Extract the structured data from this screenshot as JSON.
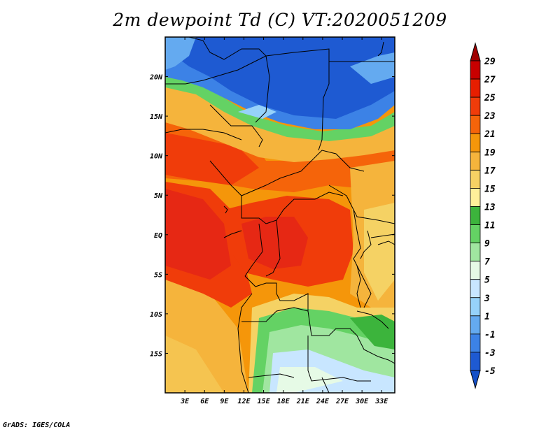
{
  "title": "2m dewpoint Td (C) VT:2020051209",
  "credit": "GrADS: IGES/COLA",
  "map": {
    "lat_range": [
      -20,
      25
    ],
    "lon_range": [
      0,
      35
    ],
    "lat_ticks": [
      {
        "value": 20,
        "label": "20N"
      },
      {
        "value": 15,
        "label": "15N"
      },
      {
        "value": 10,
        "label": "10N"
      },
      {
        "value": 5,
        "label": "5N"
      },
      {
        "value": 0,
        "label": "EQ"
      },
      {
        "value": -5,
        "label": "5S"
      },
      {
        "value": -10,
        "label": "10S"
      },
      {
        "value": -15,
        "label": "15S"
      }
    ],
    "lon_ticks": [
      {
        "value": 3,
        "label": "3E"
      },
      {
        "value": 6,
        "label": "6E"
      },
      {
        "value": 9,
        "label": "9E"
      },
      {
        "value": 12,
        "label": "12E"
      },
      {
        "value": 15,
        "label": "15E"
      },
      {
        "value": 18,
        "label": "18E"
      },
      {
        "value": 21,
        "label": "21E"
      },
      {
        "value": 24,
        "label": "24E"
      },
      {
        "value": 27,
        "label": "27E"
      },
      {
        "value": 30,
        "label": "30E"
      },
      {
        "value": 33,
        "label": "33E"
      }
    ]
  },
  "colorbar": {
    "levels": [
      "29",
      "27",
      "25",
      "23",
      "21",
      "19",
      "17",
      "15",
      "13",
      "11",
      "9",
      "7",
      "5",
      "3",
      "1",
      "-1",
      "-3",
      "-5"
    ],
    "colors": [
      "#a00000",
      "#c80000",
      "#e61e00",
      "#f03c0a",
      "#f5640a",
      "#f5960a",
      "#f5b43c",
      "#f5d264",
      "#fff09a",
      "#3cb43c",
      "#64d264",
      "#a0e6a0",
      "#e6fae6",
      "#c8e6ff",
      "#96d2fa",
      "#64aaf0",
      "#3c82e6",
      "#1e5ad2"
    ],
    "top_color": "#a00000",
    "bottom_color": "#1450c8"
  }
}
